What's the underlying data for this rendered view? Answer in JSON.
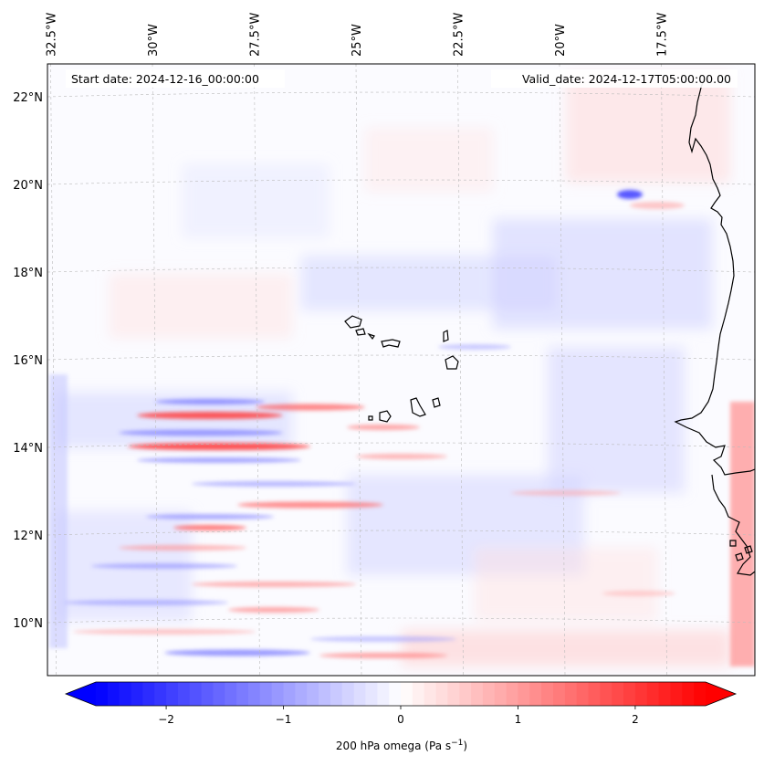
{
  "figure": {
    "start_date_label": "Start date: 2024-12-16_00:00:00",
    "valid_date_label": "Valid_date: 2024-12-17T05:00:00.00"
  },
  "map": {
    "lon_ticks": [
      {
        "value": -32.5,
        "label": "32.5°W"
      },
      {
        "value": -30.0,
        "label": "30°W"
      },
      {
        "value": -27.5,
        "label": "27.5°W"
      },
      {
        "value": -25.0,
        "label": "25°W"
      },
      {
        "value": -22.5,
        "label": "22.5°W"
      },
      {
        "value": -20.0,
        "label": "20°W"
      },
      {
        "value": -17.5,
        "label": "17.5°W"
      }
    ],
    "lat_ticks": [
      {
        "value": 22,
        "label": "22°N"
      },
      {
        "value": 20,
        "label": "20°N"
      },
      {
        "value": 18,
        "label": "18°N"
      },
      {
        "value": 16,
        "label": "16°N"
      },
      {
        "value": 14,
        "label": "14°N"
      },
      {
        "value": 12,
        "label": "12°N"
      },
      {
        "value": 10,
        "label": "10°N"
      }
    ],
    "field_colors": {
      "negative": "#0000ff",
      "zero": "#ffffff",
      "positive": "#ff0000"
    }
  },
  "colorbar": {
    "label_text": "200 hPa omega (Pa s",
    "label_sup": "−1",
    "label_close": ")",
    "vmin": -2.6,
    "vmax": 2.6,
    "ticks": [
      {
        "value": -2,
        "label": "−2"
      },
      {
        "value": -1,
        "label": "−1"
      },
      {
        "value": 0,
        "label": "0"
      },
      {
        "value": 1,
        "label": "1"
      },
      {
        "value": 2,
        "label": "2"
      }
    ]
  }
}
